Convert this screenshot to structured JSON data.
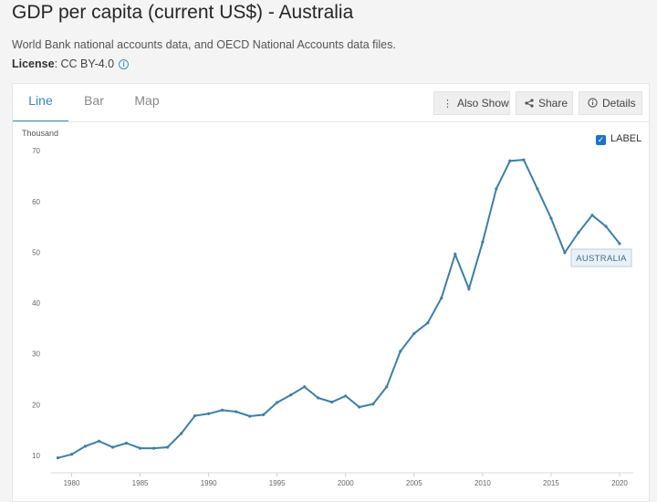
{
  "page": {
    "title": "GDP per capita (current US$) - Australia",
    "subtitle": "World Bank national accounts data, and OECD National Accounts data files.",
    "license_label": "License",
    "license_value": ": CC BY-4.0"
  },
  "tabs": [
    {
      "label": "Line",
      "active": true
    },
    {
      "label": "Bar",
      "active": false
    },
    {
      "label": "Map",
      "active": false
    }
  ],
  "toolbar": {
    "also_show": "Also Show",
    "share": "Share",
    "details": "Details"
  },
  "legend": {
    "label": "LABEL",
    "checked": true
  },
  "colors": {
    "series": "#3d7fa5",
    "accent": "#3a88c5"
  },
  "chart_data": {
    "type": "line",
    "ylabel": "Thousand",
    "ylim": [
      8,
      72
    ],
    "yticks": [
      10,
      20,
      30,
      40,
      50,
      60,
      70
    ],
    "xticks": [
      1980,
      1985,
      1990,
      1995,
      2000,
      2005,
      2010,
      2015,
      2020
    ],
    "xlim": [
      1978.5,
      2021
    ],
    "grid": false,
    "x": [
      1979,
      1980,
      1981,
      1982,
      1983,
      1984,
      1985,
      1986,
      1987,
      1988,
      1989,
      1990,
      1991,
      1992,
      1993,
      1994,
      1995,
      1996,
      1997,
      1998,
      1999,
      2000,
      2001,
      2002,
      2003,
      2004,
      2005,
      2006,
      2007,
      2008,
      2009,
      2010,
      2011,
      2012,
      2013,
      2014,
      2015,
      2016,
      2017,
      2018,
      2019,
      2020
    ],
    "series": [
      {
        "name": "AUSTRALIA",
        "values": [
          9.5,
          10.2,
          11.8,
          12.8,
          11.6,
          12.4,
          11.4,
          11.4,
          11.6,
          14.3,
          17.8,
          18.2,
          18.9,
          18.6,
          17.7,
          18.0,
          20.4,
          21.9,
          23.5,
          21.3,
          20.5,
          21.7,
          19.5,
          20.1,
          23.5,
          30.5,
          34.0,
          36.1,
          41.0,
          49.6,
          42.8,
          52.0,
          62.5,
          68.0,
          68.2,
          62.5,
          56.7,
          49.9,
          53.9,
          57.3,
          55.1,
          51.7
        ]
      }
    ],
    "highlight": {
      "series": "AUSTRALIA",
      "x": 2018,
      "label": "AUSTRALIA"
    }
  }
}
